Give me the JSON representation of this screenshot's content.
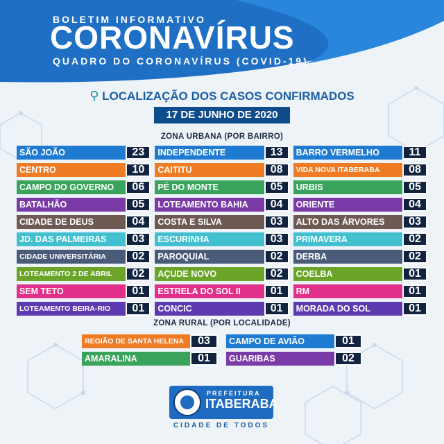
{
  "header": {
    "kicker": "BOLETIM INFORMATIVO",
    "title": "CORONAVÍRUS",
    "subtitle": "QUADRO DO CORONAVÍRUS (COVID-19)"
  },
  "location_title": "LOCALIZAÇÃO DOS CASOS CONFIRMADOS",
  "date": "17 DE JUNHO DE 2020",
  "urban": {
    "label": "ZONA URBANA (POR BAIRRO)",
    "rows": [
      [
        {
          "name": "SÃO JOÃO",
          "count": "23",
          "color": "#1f7bd1"
        },
        {
          "name": "INDEPENDENTE",
          "count": "13",
          "color": "#1f7bd1"
        },
        {
          "name": "BARRO VERMELHO",
          "count": "11",
          "color": "#1f7bd1"
        }
      ],
      [
        {
          "name": "CENTRO",
          "count": "10",
          "color": "#ef7c24"
        },
        {
          "name": "CAITITU",
          "count": "08",
          "color": "#ef7c24"
        },
        {
          "name": "VIDA NOVA ITABERABA",
          "count": "08",
          "color": "#ef7c24"
        }
      ],
      [
        {
          "name": "CAMPO DO GOVERNO",
          "count": "06",
          "color": "#3aa35c"
        },
        {
          "name": "PÉ DO MONTE",
          "count": "05",
          "color": "#3aa35c"
        },
        {
          "name": "URBIS",
          "count": "05",
          "color": "#3aa35c"
        }
      ],
      [
        {
          "name": "BATALHÃO",
          "count": "05",
          "color": "#7a3aa8"
        },
        {
          "name": "LOTEAMENTO BAHIA",
          "count": "04",
          "color": "#7a3aa8"
        },
        {
          "name": "ORIENTE",
          "count": "04",
          "color": "#7a3aa8"
        }
      ],
      [
        {
          "name": "CIDADE DE DEUS",
          "count": "04",
          "color": "#6e5a52"
        },
        {
          "name": "COSTA E SILVA",
          "count": "03",
          "color": "#6e5a52"
        },
        {
          "name": "ALTO DAS ÁRVORES",
          "count": "03",
          "color": "#6e5a52"
        }
      ],
      [
        {
          "name": "JD. DAS PALMEIRAS",
          "count": "03",
          "color": "#43c0d0"
        },
        {
          "name": "ESCURINHA",
          "count": "03",
          "color": "#43c0d0"
        },
        {
          "name": "PRIMAVERA",
          "count": "02",
          "color": "#43c0d0"
        }
      ],
      [
        {
          "name": "CIDADE UNIVERSITÁRIA",
          "count": "02",
          "color": "#4a5b7a"
        },
        {
          "name": "PAROQUIAL",
          "count": "02",
          "color": "#4a5b7a"
        },
        {
          "name": "DERBA",
          "count": "02",
          "color": "#4a5b7a"
        }
      ],
      [
        {
          "name": "LOTEAMENTO 2 DE ABRIL",
          "count": "02",
          "color": "#6aa52a"
        },
        {
          "name": "AÇUDE NOVO",
          "count": "02",
          "color": "#6aa52a"
        },
        {
          "name": "COELBA",
          "count": "01",
          "color": "#6aa52a"
        }
      ],
      [
        {
          "name": "SEM TETO",
          "count": "01",
          "color": "#e0308a"
        },
        {
          "name": "ESTRELA DO SOL II",
          "count": "01",
          "color": "#e0308a"
        },
        {
          "name": "RM",
          "count": "01",
          "color": "#e0308a"
        }
      ],
      [
        {
          "name": "LOTEAMENTO BEIRA-RIO",
          "count": "01",
          "color": "#5e3ab0"
        },
        {
          "name": "CONCIC",
          "count": "01",
          "color": "#5e3ab0"
        },
        {
          "name": "MORADA DO SOL",
          "count": "01",
          "color": "#5e3ab0"
        }
      ]
    ]
  },
  "rural": {
    "label": "ZONA RURAL (POR LOCALIDADE)",
    "rows": [
      [
        {
          "name": "REGIÃO DE SANTA HELENA",
          "count": "03",
          "color": "#ef7c24"
        },
        {
          "name": "CAMPO DE AVIÃO",
          "count": "01",
          "color": "#1f7bd1"
        }
      ],
      [
        {
          "name": "AMARALINA",
          "count": "01",
          "color": "#3aa35c"
        },
        {
          "name": "GUARIBAS",
          "count": "02",
          "color": "#7a3aa8"
        }
      ]
    ]
  },
  "footer": {
    "prefecture": "PREFEITURA",
    "city": "ITABERABA",
    "slogan": "CIDADE DE TODOS",
    "seal_icon": "city-seal-icon"
  }
}
